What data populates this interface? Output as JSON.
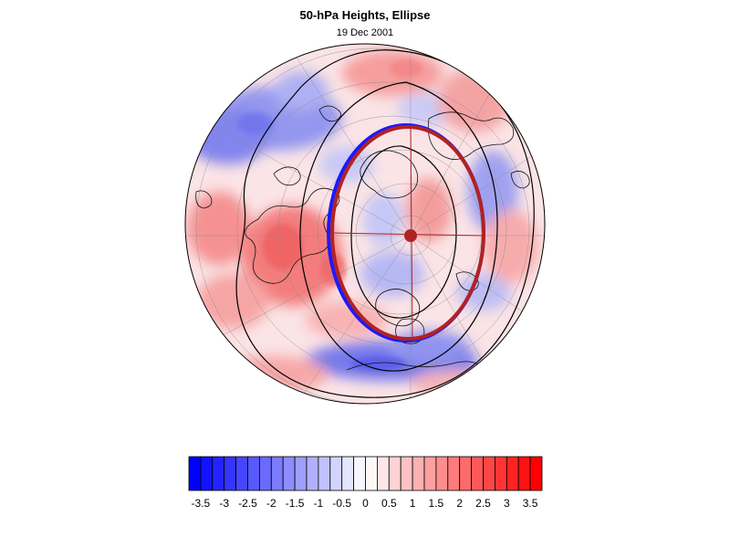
{
  "header": {
    "title": "50-hPa Heights, Ellipse",
    "date": "19 Dec 2001"
  },
  "map": {
    "projection": "polar-stereographic-north",
    "field": "50-hPa height anomaly",
    "ellipse_outer_color": "#1a1aff",
    "ellipse_inner_color": "#b22222",
    "center_marker_color": "#b22222",
    "contour_color": "#000000"
  },
  "colorbar": {
    "min": -3.75,
    "max": 3.75,
    "step": 0.25,
    "low_color": "#0000ff",
    "high_color": "#ff0000",
    "mid_color": "#ffffff",
    "tick_labels": [
      "-3.5",
      "-3",
      "-2.5",
      "-2",
      "-1.5",
      "-1",
      "-0.5",
      "0",
      "0.5",
      "1",
      "1.5",
      "2",
      "2.5",
      "3",
      "3.5"
    ]
  }
}
